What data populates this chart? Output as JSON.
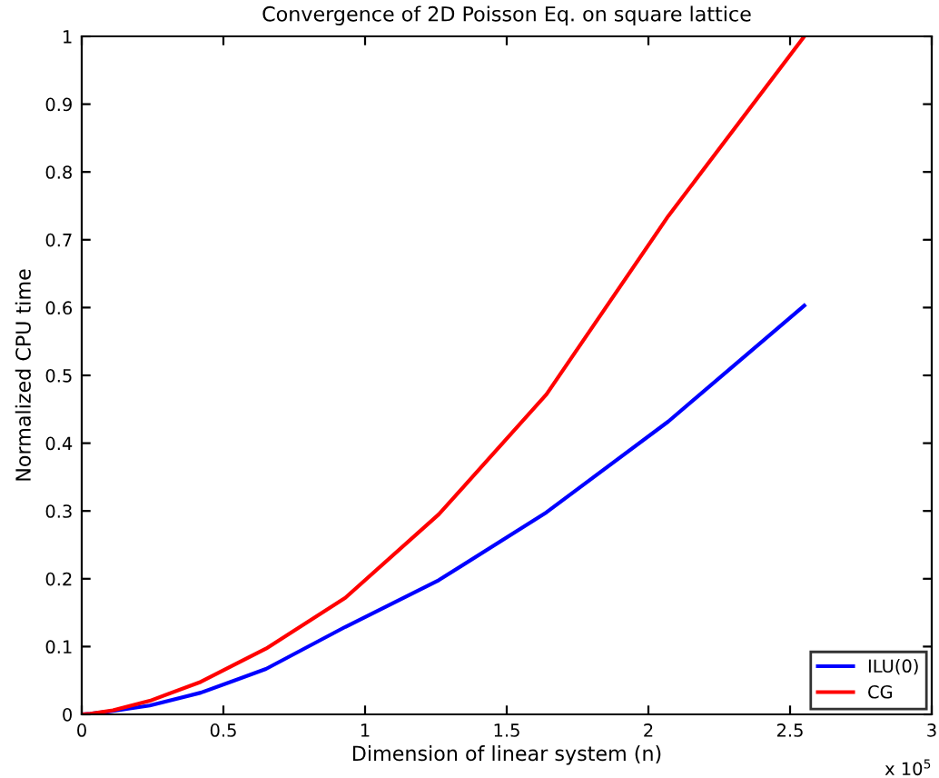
{
  "chart_data": {
    "type": "line",
    "title": "Convergence of 2D Poisson Eq. on square lattice",
    "xlabel": "Dimension of linear system (n)",
    "ylabel": "Normalized CPU time",
    "annotations": [
      "x 10$^{5}$"
    ],
    "series": [
      {
        "name": "ILU(0)",
        "color": "#0000ff",
        "x": [
          0.00025,
          0.03025,
          0.11025,
          0.24025,
          0.42025,
          0.65025,
          0.93025,
          1.26025,
          1.64025,
          2.07025,
          2.55025
        ],
        "values": [
          0,
          0.001,
          0.005,
          0.013,
          0.032,
          0.067,
          0.129,
          0.198,
          0.298,
          0.432,
          0.603
        ]
      },
      {
        "name": "CG",
        "color": "#ff0000",
        "x": [
          0.00025,
          0.03025,
          0.11025,
          0.24025,
          0.42025,
          0.65025,
          0.93025,
          1.26025,
          1.64025,
          2.07025,
          2.55025
        ],
        "values": [
          0,
          0.001,
          0.006,
          0.02,
          0.048,
          0.097,
          0.172,
          0.295,
          0.472,
          0.735,
          1.0
        ]
      }
    ],
    "xlim": [
      0,
      3
    ],
    "xticks": [
      0,
      0.5,
      1,
      1.5,
      2,
      2.5,
      3
    ],
    "ylim": [
      0,
      1
    ],
    "yticks": [
      0,
      0.1,
      0.2,
      0.3,
      0.4,
      0.5,
      0.6,
      0.7,
      0.8,
      0.9,
      1
    ],
    "legend": "bottom right",
    "line_style": "solid",
    "marker": "none"
  }
}
